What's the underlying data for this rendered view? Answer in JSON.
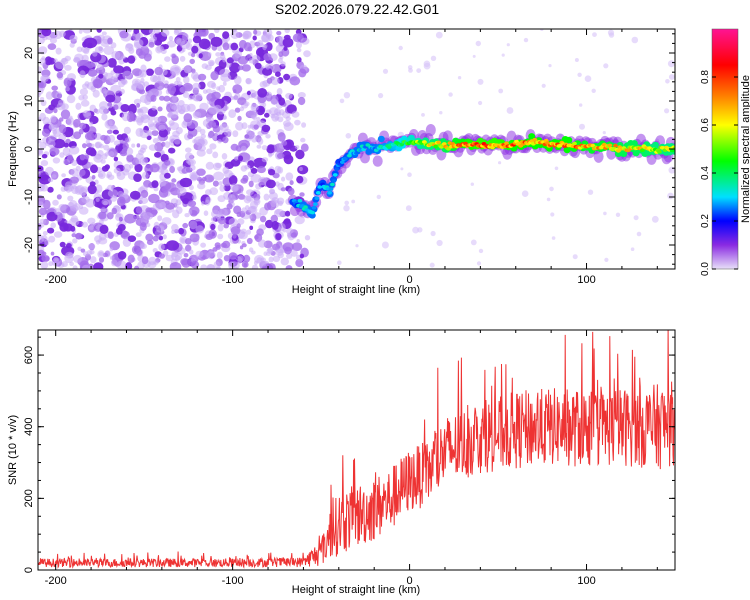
{
  "page": {
    "title": "S202.2026.079.22.42.G01"
  },
  "chart_data": [
    {
      "type": "heatmap",
      "title": "S202.2026.079.22.42.G01",
      "xlabel": "Height of straight line (km)",
      "ylabel": "Frequency (Hz)",
      "xlim": [
        -210,
        150
      ],
      "ylim": [
        -25,
        25
      ],
      "xticks": [
        -200,
        -100,
        0,
        100
      ],
      "xtick_labels": [
        "-200",
        "-100",
        "0",
        "100"
      ],
      "yticks": [
        -20,
        -10,
        0,
        10,
        20
      ],
      "ytick_labels": [
        "-20",
        "-10",
        "0",
        "10",
        "20"
      ],
      "colorbar": {
        "label": "Normalized spectral amplitude",
        "range": [
          0,
          1
        ],
        "ticks": [
          0.0,
          0.2,
          0.4,
          0.6,
          0.8
        ],
        "tick_labels": [
          "0.0",
          "0.2",
          "0.4",
          "0.6",
          "0.8"
        ],
        "colormap": [
          "#e8e0f8",
          "#8a2be2",
          "#0000ff",
          "#00e0ff",
          "#00ff00",
          "#ffff00",
          "#ff8000",
          "#ff0000",
          "#ff1493"
        ]
      },
      "noise_region": {
        "x_range": [
          -210,
          -62
        ],
        "y_range": [
          -25,
          25
        ],
        "amplitude": 0.1
      },
      "signal_track": [
        {
          "x": -65,
          "freq": -11,
          "amp": 0.25
        },
        {
          "x": -60,
          "freq": -12,
          "amp": 0.3
        },
        {
          "x": -55,
          "freq": -13.5,
          "amp": 0.3
        },
        {
          "x": -50,
          "freq": -7,
          "amp": 0.25
        },
        {
          "x": -45,
          "freq": -9,
          "amp": 0.3
        },
        {
          "x": -40,
          "freq": -3,
          "amp": 0.25
        },
        {
          "x": -35,
          "freq": -1.5,
          "amp": 0.28
        },
        {
          "x": -30,
          "freq": -0.5,
          "amp": 0.3
        },
        {
          "x": -25,
          "freq": 0.5,
          "amp": 0.3
        },
        {
          "x": -20,
          "freq": 0,
          "amp": 0.3
        },
        {
          "x": -10,
          "freq": 0.8,
          "amp": 0.35
        },
        {
          "x": 0,
          "freq": 1.5,
          "amp": 0.45
        },
        {
          "x": 10,
          "freq": 1,
          "amp": 0.55
        },
        {
          "x": 20,
          "freq": 0.8,
          "amp": 0.6
        },
        {
          "x": 30,
          "freq": 0.8,
          "amp": 0.7
        },
        {
          "x": 40,
          "freq": 0.7,
          "amp": 0.75
        },
        {
          "x": 50,
          "freq": 0.8,
          "amp": 0.75
        },
        {
          "x": 60,
          "freq": 1,
          "amp": 0.7
        },
        {
          "x": 70,
          "freq": 1.5,
          "amp": 0.7
        },
        {
          "x": 80,
          "freq": 1,
          "amp": 0.7
        },
        {
          "x": 90,
          "freq": 0.8,
          "amp": 0.7
        },
        {
          "x": 100,
          "freq": 0.5,
          "amp": 0.65
        },
        {
          "x": 110,
          "freq": 0.5,
          "amp": 0.65
        },
        {
          "x": 120,
          "freq": 0,
          "amp": 0.6
        },
        {
          "x": 130,
          "freq": 0,
          "amp": 0.6
        },
        {
          "x": 140,
          "freq": 0,
          "amp": 0.55
        },
        {
          "x": 150,
          "freq": 0,
          "amp": 0.55
        }
      ]
    },
    {
      "type": "line",
      "xlabel": "Height of straight line (km)",
      "ylabel": "SNR (10 * v/v)",
      "xlim": [
        -210,
        150
      ],
      "ylim": [
        0,
        670
      ],
      "xticks": [
        -200,
        -100,
        0,
        100
      ],
      "xtick_labels": [
        "-200",
        "-100",
        "0",
        "100"
      ],
      "yticks": [
        0,
        200,
        400,
        600
      ],
      "ytick_labels": [
        "0",
        "200",
        "400",
        "600"
      ],
      "series": [
        {
          "name": "SNR",
          "color": "#ee3333",
          "envelope": {
            "x": [
              -210,
              -100,
              -60,
              -50,
              -45,
              -40,
              -30,
              -20,
              -10,
              0,
              10,
              20,
              40,
              60,
              80,
              100,
              120,
              140,
              150
            ],
            "mean": [
              20,
              20,
              22,
              50,
              100,
              130,
              150,
              170,
              200,
              250,
              270,
              330,
              370,
              390,
              400,
              395,
              400,
              400,
              410
            ],
            "spread": [
              12,
              12,
              14,
              40,
              70,
              90,
              90,
              90,
              90,
              90,
              90,
              100,
              100,
              110,
              110,
              110,
              110,
              120,
              120
            ]
          }
        }
      ]
    }
  ]
}
